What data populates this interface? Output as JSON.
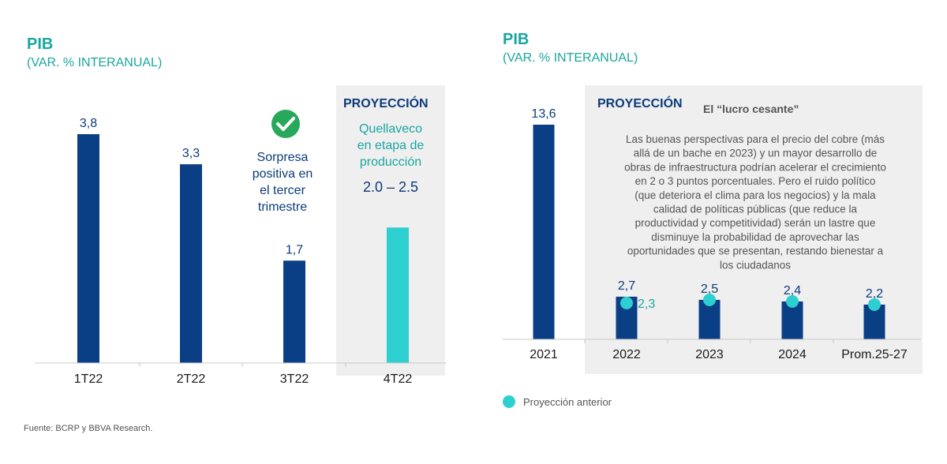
{
  "source": "Fuente: BCRP y BBVA Research.",
  "colors": {
    "bar": "#0a3f85",
    "projection_bar": "#2ecfd0",
    "accent_teal": "#1aa6a0",
    "panel_bg": "#efefef",
    "check_green": "#27a85a"
  },
  "chart_data": [
    {
      "type": "bar",
      "title": "PIB",
      "subtitle": "(VAR. % INTERANUAL)",
      "categories": [
        "1T22",
        "2T22",
        "3T22",
        "4T22"
      ],
      "values": [
        3.8,
        3.3,
        1.7,
        null
      ],
      "value_labels": [
        "3,8",
        "3,3",
        "1,7",
        ""
      ],
      "projection": {
        "label": "PROYECCIÓN",
        "category": "4T22",
        "note": [
          "Quellaveco",
          "en etapa de",
          "producción"
        ],
        "range_label": "2.0 – 2.5",
        "range": [
          2.0,
          2.5
        ]
      },
      "annotation": {
        "icon": "check-circle-icon",
        "lines": [
          "Sorpresa",
          "positiva en",
          "el tercer",
          "trimestre"
        ]
      },
      "ylim": [
        0,
        4.2
      ],
      "grid": false
    },
    {
      "type": "bar",
      "title": "PIB",
      "subtitle": "(VAR. % INTERANUAL)",
      "categories": [
        "2021",
        "2022",
        "2023",
        "2024",
        "Prom.25-27"
      ],
      "values": [
        13.6,
        2.7,
        2.5,
        2.4,
        2.2
      ],
      "value_labels": [
        "13,6",
        "2,7",
        "2,5",
        "2,4",
        "2,2"
      ],
      "previous_projection": [
        null,
        2.3,
        2.5,
        2.4,
        2.2
      ],
      "previous_projection_labels": [
        "",
        "2,3",
        "",
        "",
        ""
      ],
      "projection_label": "PROYECCIÓN",
      "box": {
        "title": "El “lucro cesante”",
        "lines": [
          "Las buenas perspectivas para el precio del cobre (más",
          "allá de un bache en  2023) y un mayor desarrollo de",
          "obras de infraestructura podrían acelerar el crecimiento",
          "en 2 o 3 puntos porcentuales. Pero el ruido político",
          "(que deteriora el clima para los negocios) y la mala",
          "calidad de políticas públicas (que reduce la",
          "productividad y competitividad) serán un lastre que",
          "disminuye la probabilidad de aprovechar las",
          "oportunidades que se presentan, restando bienestar a",
          "los ciudadanos"
        ]
      },
      "legend": [
        {
          "marker": "circle",
          "label": "Proyección anterior"
        }
      ],
      "legend_position": "bottom-left",
      "ylim": [
        0,
        14
      ],
      "grid": false
    }
  ]
}
